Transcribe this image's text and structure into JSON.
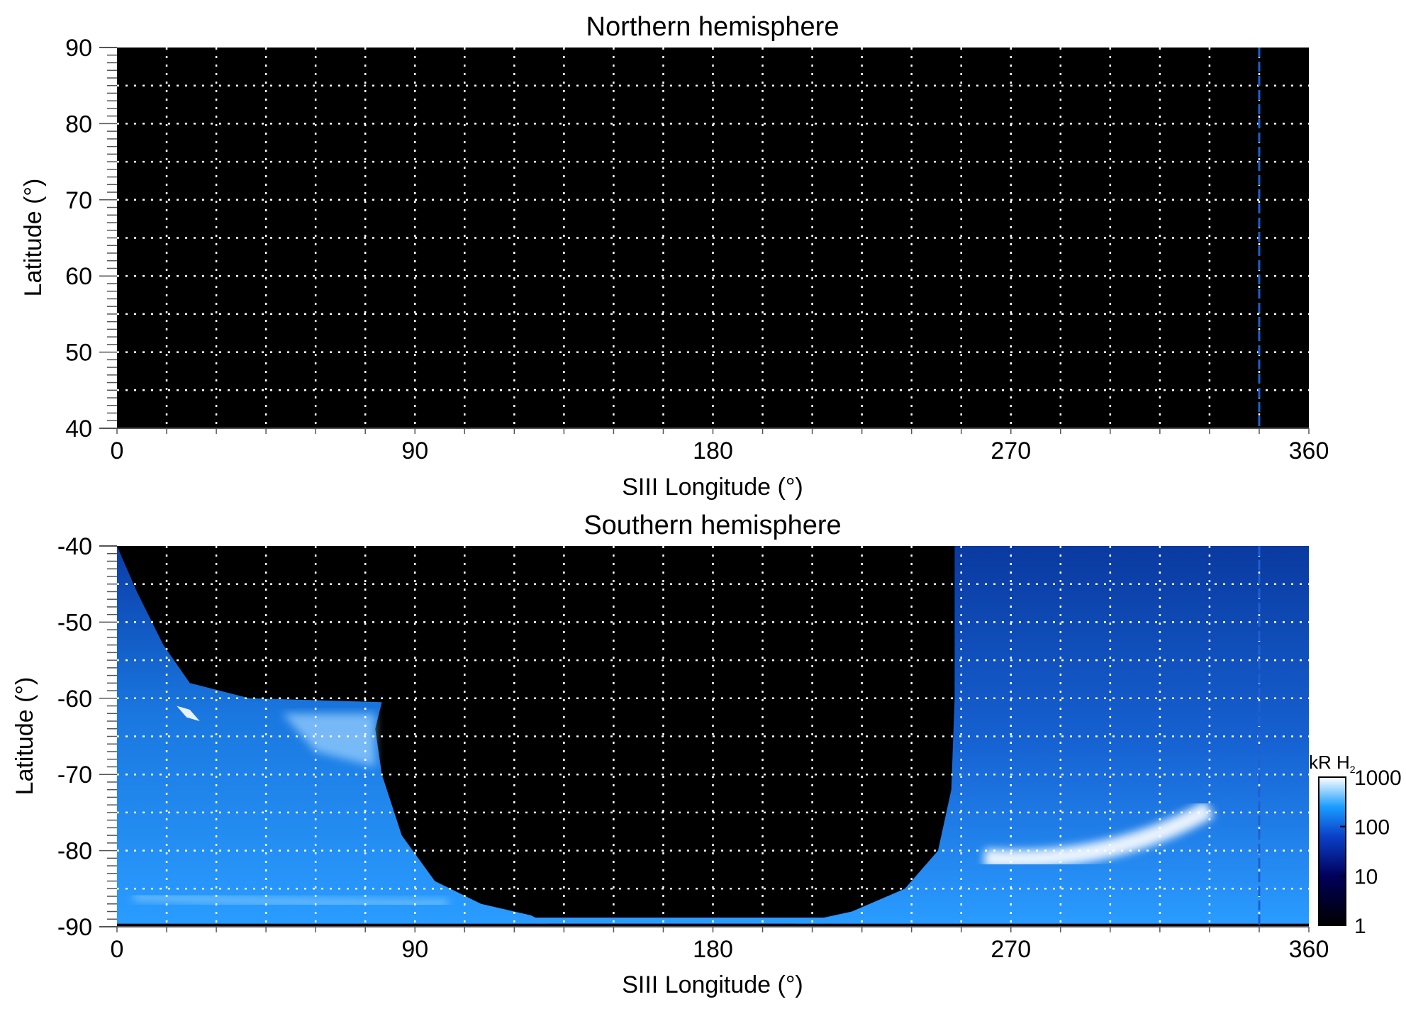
{
  "chart_data": [
    {
      "type": "heatmap",
      "title": "Northern hemisphere",
      "xlabel": "SIII Longitude (°)",
      "ylabel": "Latitude (°)",
      "xlim": [
        0,
        360
      ],
      "ylim": [
        40,
        90
      ],
      "xticks": [
        "0",
        "90",
        "180",
        "270",
        "360"
      ],
      "yticks": [
        "40",
        "50",
        "60",
        "70",
        "80",
        "90"
      ],
      "grid": true,
      "grid_x_step": 15,
      "grid_y_step": 5,
      "marker_longitude": 345,
      "content": "no emission"
    },
    {
      "type": "heatmap",
      "title": "Southern hemisphere",
      "xlabel": "SIII Longitude (°)",
      "ylabel": "Latitude (°)",
      "xlim": [
        0,
        360
      ],
      "ylim": [
        -90,
        -40
      ],
      "xticks": [
        "0",
        "90",
        "180",
        "270",
        "360"
      ],
      "yticks": [
        "-90",
        "-80",
        "-70",
        "-60",
        "-50",
        "-40"
      ],
      "grid": true,
      "grid_x_step": 15,
      "grid_y_step": 5,
      "marker_longitude": 345,
      "colorbar": {
        "label": "kR H",
        "label_subscript": "2",
        "scale": "log",
        "range": [
          1,
          1000
        ],
        "ticks": [
          "1",
          "10",
          "100",
          "1000"
        ],
        "colors": [
          "#000000",
          "#00005a",
          "#0a40c8",
          "#1a9cff",
          "#ffffff"
        ]
      }
    }
  ],
  "colors": {
    "marker_line": "#1f5fd0",
    "background": "#000000",
    "grid": "#ffffff"
  }
}
